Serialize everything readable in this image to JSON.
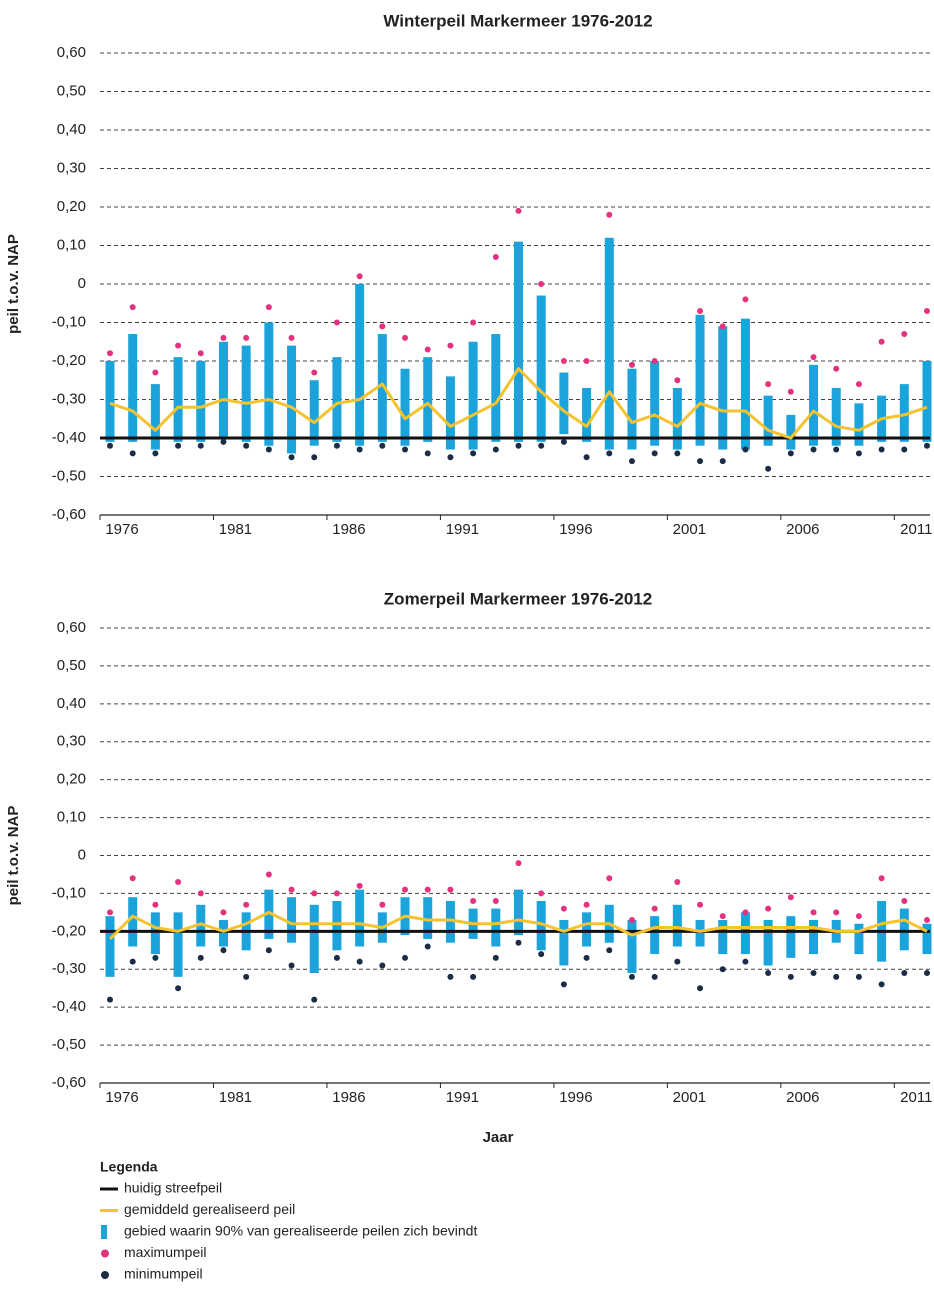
{
  "chart_data": [
    {
      "type": "range",
      "title": "Winterpeil Markermeer 1976-2012",
      "ylabel": "peil t.o.v. NAP",
      "categories": [
        "1976",
        null,
        null,
        null,
        null,
        "1981",
        null,
        null,
        null,
        null,
        "1986",
        null,
        null,
        null,
        null,
        "1991",
        null,
        null,
        null,
        null,
        "1996",
        null,
        null,
        null,
        null,
        "2001",
        null,
        null,
        null,
        null,
        "2006",
        null,
        null,
        null,
        null,
        "2011",
        null
      ],
      "ylim": [
        -0.6,
        0.6
      ],
      "yticks": [
        {
          "value": -0.6,
          "label": "-0,60"
        },
        {
          "value": -0.5,
          "label": "-0,50"
        },
        {
          "value": -0.4,
          "label": "-0,40"
        },
        {
          "value": -0.3,
          "label": "-0,30"
        },
        {
          "value": -0.2,
          "label": "-0,20"
        },
        {
          "value": -0.1,
          "label": "-0,10"
        },
        0,
        {
          "value": 0.1,
          "label": "0,10"
        },
        {
          "value": 0.2,
          "label": "0,20"
        },
        {
          "value": 0.3,
          "label": "0,30"
        },
        {
          "value": 0.4,
          "label": "0,40"
        },
        {
          "value": 0.5,
          "label": "0,50"
        },
        {
          "value": 0.6,
          "label": "0,60"
        }
      ],
      "grid": true,
      "streefpeil": -0.4,
      "band_low": [
        -0.41,
        -0.41,
        -0.43,
        -0.41,
        -0.41,
        -0.4,
        -0.41,
        -0.42,
        -0.44,
        -0.42,
        -0.41,
        -0.42,
        -0.41,
        -0.42,
        -0.41,
        -0.43,
        -0.43,
        -0.41,
        -0.41,
        -0.41,
        -0.39,
        -0.41,
        -0.43,
        -0.43,
        -0.42,
        -0.43,
        -0.42,
        -0.43,
        -0.43,
        -0.42,
        -0.43,
        -0.42,
        -0.42,
        -0.42,
        -0.41,
        -0.41,
        -0.41
      ],
      "band_high": [
        -0.2,
        -0.13,
        -0.26,
        -0.19,
        -0.2,
        -0.15,
        -0.16,
        -0.1,
        -0.16,
        -0.25,
        -0.19,
        0.0,
        -0.13,
        -0.22,
        -0.19,
        -0.24,
        -0.15,
        -0.13,
        0.11,
        -0.03,
        -0.23,
        -0.27,
        0.12,
        -0.22,
        -0.2,
        -0.27,
        -0.08,
        -0.11,
        -0.09,
        -0.29,
        -0.34,
        -0.21,
        -0.27,
        -0.31,
        -0.29,
        -0.26,
        -0.2
      ],
      "mean": [
        -0.31,
        -0.33,
        -0.38,
        -0.32,
        -0.32,
        -0.3,
        -0.31,
        -0.3,
        -0.32,
        -0.36,
        -0.31,
        -0.3,
        -0.26,
        -0.35,
        -0.31,
        -0.37,
        -0.34,
        -0.31,
        -0.22,
        -0.28,
        -0.33,
        -0.37,
        -0.28,
        -0.36,
        -0.34,
        -0.37,
        -0.31,
        -0.33,
        -0.33,
        -0.38,
        -0.4,
        -0.33,
        -0.37,
        -0.38,
        -0.35,
        -0.34,
        -0.32
      ],
      "max": [
        -0.18,
        -0.06,
        -0.23,
        -0.16,
        -0.18,
        -0.14,
        -0.14,
        -0.06,
        -0.14,
        -0.23,
        -0.1,
        0.02,
        -0.11,
        -0.14,
        -0.17,
        -0.16,
        -0.1,
        0.07,
        0.19,
        0.0,
        -0.2,
        -0.2,
        0.18,
        -0.21,
        -0.2,
        -0.25,
        -0.07,
        -0.11,
        -0.04,
        -0.26,
        -0.28,
        -0.19,
        -0.22,
        -0.26,
        -0.15,
        -0.13,
        -0.07
      ],
      "min": [
        -0.42,
        -0.44,
        -0.44,
        -0.42,
        -0.42,
        -0.41,
        -0.42,
        -0.43,
        -0.45,
        -0.45,
        -0.42,
        -0.43,
        -0.42,
        -0.43,
        -0.44,
        -0.45,
        -0.44,
        -0.43,
        -0.42,
        -0.42,
        -0.41,
        -0.45,
        -0.44,
        -0.46,
        -0.44,
        -0.44,
        -0.46,
        -0.46,
        -0.43,
        -0.48,
        -0.44,
        -0.43,
        -0.43,
        -0.44,
        -0.43,
        -0.43,
        -0.42
      ]
    },
    {
      "type": "range",
      "title": "Zomerpeil Markermeer 1976-2012",
      "ylabel": "peil t.o.v. NAP",
      "xlabel": "Jaar",
      "categories": [
        "1976",
        null,
        null,
        null,
        null,
        "1981",
        null,
        null,
        null,
        null,
        "1986",
        null,
        null,
        null,
        null,
        "1991",
        null,
        null,
        null,
        null,
        "1996",
        null,
        null,
        null,
        null,
        "2001",
        null,
        null,
        null,
        null,
        "2006",
        null,
        null,
        null,
        null,
        "2011",
        null
      ],
      "ylim": [
        -0.6,
        0.6
      ],
      "yticks": [
        {
          "value": -0.6,
          "label": "-0,60"
        },
        {
          "value": -0.5,
          "label": "-0,50"
        },
        {
          "value": -0.4,
          "label": "-0,40"
        },
        {
          "value": -0.3,
          "label": "-0,30"
        },
        {
          "value": -0.2,
          "label": "-0,20"
        },
        {
          "value": -0.1,
          "label": "-0,10"
        },
        0,
        {
          "value": 0.1,
          "label": "0,10"
        },
        {
          "value": 0.2,
          "label": "0,20"
        },
        {
          "value": 0.3,
          "label": "0,30"
        },
        {
          "value": 0.4,
          "label": "0,40"
        },
        {
          "value": 0.5,
          "label": "0,50"
        },
        {
          "value": 0.6,
          "label": "0,60"
        }
      ],
      "grid": true,
      "streefpeil": -0.2,
      "band_low": [
        -0.32,
        -0.24,
        -0.26,
        -0.32,
        -0.24,
        -0.24,
        -0.25,
        -0.22,
        -0.23,
        -0.31,
        -0.25,
        -0.24,
        -0.23,
        -0.21,
        -0.22,
        -0.23,
        -0.22,
        -0.24,
        -0.21,
        -0.25,
        -0.29,
        -0.24,
        -0.23,
        -0.31,
        -0.26,
        -0.24,
        -0.24,
        -0.26,
        -0.26,
        -0.29,
        -0.27,
        -0.26,
        -0.23,
        -0.26,
        -0.28,
        -0.25,
        -0.26
      ],
      "band_high": [
        -0.16,
        -0.11,
        -0.15,
        -0.15,
        -0.13,
        -0.17,
        -0.15,
        -0.09,
        -0.11,
        -0.13,
        -0.12,
        -0.09,
        -0.15,
        -0.11,
        -0.11,
        -0.12,
        -0.14,
        -0.14,
        -0.09,
        -0.12,
        -0.17,
        -0.15,
        -0.13,
        -0.17,
        -0.16,
        -0.13,
        -0.17,
        -0.17,
        -0.15,
        -0.17,
        -0.16,
        -0.17,
        -0.17,
        -0.18,
        -0.12,
        -0.14,
        -0.18
      ],
      "mean": [
        -0.22,
        -0.16,
        -0.19,
        -0.2,
        -0.18,
        -0.2,
        -0.18,
        -0.15,
        -0.18,
        -0.18,
        -0.18,
        -0.18,
        -0.19,
        -0.16,
        -0.17,
        -0.17,
        -0.18,
        -0.18,
        -0.17,
        -0.18,
        -0.2,
        -0.18,
        -0.18,
        -0.21,
        -0.19,
        -0.19,
        -0.2,
        -0.19,
        -0.19,
        -0.19,
        -0.19,
        -0.19,
        -0.2,
        -0.2,
        -0.18,
        -0.17,
        -0.2
      ],
      "max": [
        -0.15,
        -0.06,
        -0.13,
        -0.07,
        -0.1,
        -0.15,
        -0.13,
        -0.05,
        -0.09,
        -0.1,
        -0.1,
        -0.08,
        -0.13,
        -0.09,
        -0.09,
        -0.09,
        -0.12,
        -0.12,
        -0.02,
        -0.1,
        -0.14,
        -0.13,
        -0.06,
        -0.17,
        -0.14,
        -0.07,
        -0.13,
        -0.16,
        -0.15,
        -0.14,
        -0.11,
        -0.15,
        -0.15,
        -0.16,
        -0.06,
        -0.12,
        -0.17
      ],
      "min": [
        -0.38,
        -0.28,
        -0.27,
        -0.35,
        -0.27,
        -0.25,
        -0.32,
        -0.25,
        -0.29,
        -0.38,
        -0.27,
        -0.28,
        -0.29,
        -0.27,
        -0.24,
        -0.32,
        -0.32,
        -0.27,
        -0.23,
        -0.26,
        -0.34,
        -0.27,
        -0.25,
        -0.32,
        -0.32,
        -0.28,
        -0.35,
        -0.3,
        -0.28,
        -0.31,
        -0.32,
        -0.31,
        -0.32,
        -0.32,
        -0.34,
        -0.31,
        -0.31
      ]
    }
  ],
  "legend": {
    "title": "Legenda",
    "items": [
      {
        "name": "huidig streefpeil",
        "color": "#111111"
      },
      {
        "name": "gemiddeld gerealiseerd peil",
        "color": "#f5c230"
      },
      {
        "name": "gebied waarin 90% van gerealiseerde peilen zich bevindt",
        "color": "#1ba3dc"
      },
      {
        "name": "maximumpeil",
        "color": "#e5327e"
      },
      {
        "name": "minimumpeil",
        "color": "#1c2c44"
      }
    ]
  }
}
